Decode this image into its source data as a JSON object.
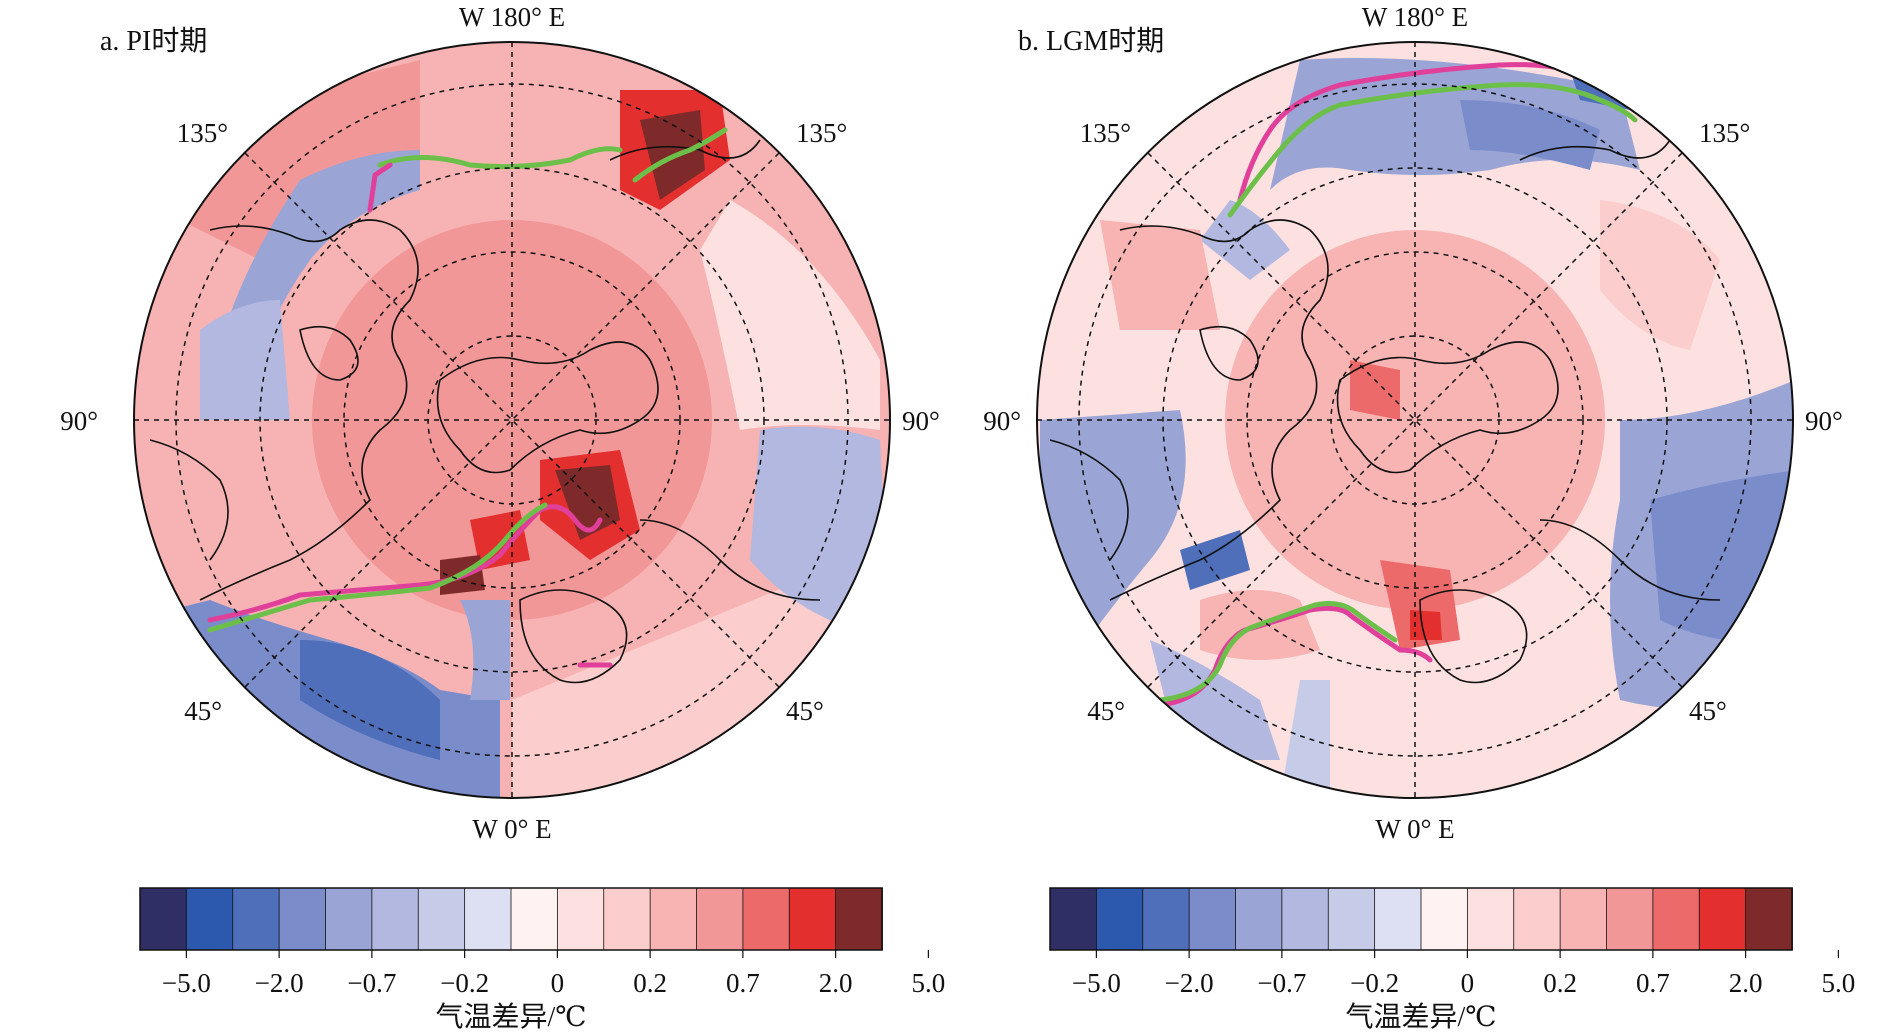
{
  "panels": [
    {
      "title": "a. PI时期",
      "labels": {
        "top": "W 180° E",
        "bottom": "W 0° E",
        "left": "90°",
        "right": "90°",
        "upper_left": "135°",
        "upper_right": "135°",
        "lower_left": "45°",
        "lower_right": "45°"
      },
      "colorbar": {
        "ticks": [
          "−5.0",
          "−2.0",
          "−0.7",
          "−0.2",
          "0",
          "0.2",
          "0.7",
          "2.0",
          "5.0"
        ],
        "unit_label": "气温差异/℃"
      }
    },
    {
      "title": "b. LGM时期",
      "labels": {
        "top": "W 180° E",
        "bottom": "W 0° E",
        "left": "90°",
        "right": "90°",
        "upper_left": "135°",
        "upper_right": "135°",
        "lower_left": "45°",
        "lower_right": "45°"
      },
      "colorbar": {
        "ticks": [
          "−5.0",
          "−2.0",
          "−0.7",
          "−0.2",
          "0",
          "0.2",
          "0.7",
          "2.0",
          "5.0"
        ],
        "unit_label": "气温差异/℃"
      }
    }
  ],
  "colormap": [
    "#2f2f66",
    "#2c59ae",
    "#4f6fba",
    "#7b8ccb",
    "#9aa5d5",
    "#b2b8df",
    "#c6cbe8",
    "#dde0f3",
    "#fff2f2",
    "#fde0e0",
    "#fbcdcd",
    "#f8b3b3",
    "#f29797",
    "#ec6a6a",
    "#e42f2f",
    "#7f2a2a"
  ],
  "line_colors": {
    "green": "#6cc04a",
    "magenta": "#e0409a"
  }
}
